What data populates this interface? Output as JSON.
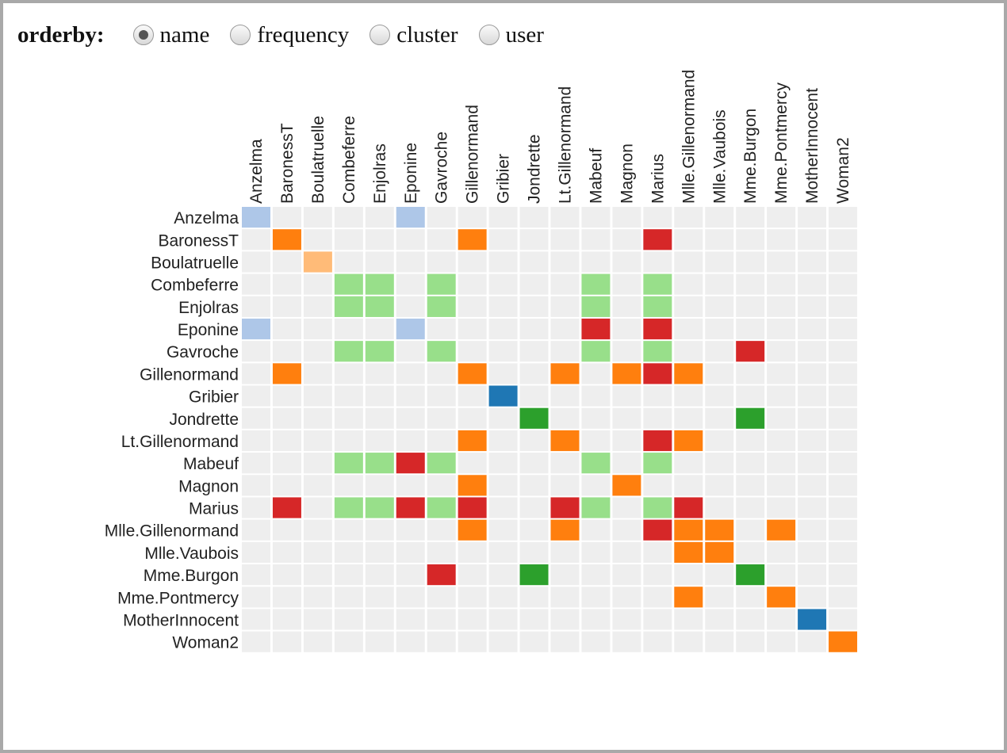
{
  "controls": {
    "orderby_label": "orderby:",
    "options": [
      {
        "label": "name",
        "checked": true
      },
      {
        "label": "frequency",
        "checked": false
      },
      {
        "label": "cluster",
        "checked": false
      },
      {
        "label": "user",
        "checked": false
      }
    ]
  },
  "colors": {
    "background": "#eeeeee",
    "group_colors": {
      "1": "#aec7e8",
      "2": "#ff7f0e",
      "3": "#ffbb78",
      "4": "#98df8a",
      "5": "#d62728",
      "6": "#1f77b4",
      "7": "#2ca02c"
    }
  },
  "chart_data": {
    "type": "heatmap",
    "title": "",
    "nodes": [
      "Anzelma",
      "BaronessT",
      "Boulatruelle",
      "Combeferre",
      "Enjolras",
      "Eponine",
      "Gavroche",
      "Gillenormand",
      "Gribier",
      "Jondrette",
      "Lt.Gillenormand",
      "Mabeuf",
      "Magnon",
      "Marius",
      "Mlle.Gillenormand",
      "Mlle.Vaubois",
      "Mme.Burgon",
      "Mme.Pontmercy",
      "MotherInnocent",
      "Woman2"
    ],
    "cells": [
      {
        "row": "Anzelma",
        "col": "Anzelma",
        "group": 1
      },
      {
        "row": "Anzelma",
        "col": "Eponine",
        "group": 1
      },
      {
        "row": "BaronessT",
        "col": "BaronessT",
        "group": 2
      },
      {
        "row": "BaronessT",
        "col": "Gillenormand",
        "group": 2
      },
      {
        "row": "BaronessT",
        "col": "Marius",
        "group": 5
      },
      {
        "row": "Boulatruelle",
        "col": "Boulatruelle",
        "group": 3
      },
      {
        "row": "Combeferre",
        "col": "Combeferre",
        "group": 4
      },
      {
        "row": "Combeferre",
        "col": "Enjolras",
        "group": 4
      },
      {
        "row": "Combeferre",
        "col": "Gavroche",
        "group": 4
      },
      {
        "row": "Combeferre",
        "col": "Mabeuf",
        "group": 4
      },
      {
        "row": "Combeferre",
        "col": "Marius",
        "group": 4
      },
      {
        "row": "Enjolras",
        "col": "Combeferre",
        "group": 4
      },
      {
        "row": "Enjolras",
        "col": "Enjolras",
        "group": 4
      },
      {
        "row": "Enjolras",
        "col": "Gavroche",
        "group": 4
      },
      {
        "row": "Enjolras",
        "col": "Mabeuf",
        "group": 4
      },
      {
        "row": "Enjolras",
        "col": "Marius",
        "group": 4
      },
      {
        "row": "Eponine",
        "col": "Anzelma",
        "group": 1
      },
      {
        "row": "Eponine",
        "col": "Eponine",
        "group": 1
      },
      {
        "row": "Eponine",
        "col": "Mabeuf",
        "group": 5
      },
      {
        "row": "Eponine",
        "col": "Marius",
        "group": 5
      },
      {
        "row": "Gavroche",
        "col": "Combeferre",
        "group": 4
      },
      {
        "row": "Gavroche",
        "col": "Enjolras",
        "group": 4
      },
      {
        "row": "Gavroche",
        "col": "Gavroche",
        "group": 4
      },
      {
        "row": "Gavroche",
        "col": "Mabeuf",
        "group": 4
      },
      {
        "row": "Gavroche",
        "col": "Marius",
        "group": 4
      },
      {
        "row": "Gavroche",
        "col": "Mme.Burgon",
        "group": 5
      },
      {
        "row": "Gillenormand",
        "col": "BaronessT",
        "group": 2
      },
      {
        "row": "Gillenormand",
        "col": "Gillenormand",
        "group": 2
      },
      {
        "row": "Gillenormand",
        "col": "Lt.Gillenormand",
        "group": 2
      },
      {
        "row": "Gillenormand",
        "col": "Magnon",
        "group": 2
      },
      {
        "row": "Gillenormand",
        "col": "Marius",
        "group": 5
      },
      {
        "row": "Gillenormand",
        "col": "Mlle.Gillenormand",
        "group": 2
      },
      {
        "row": "Gribier",
        "col": "Gribier",
        "group": 6
      },
      {
        "row": "Jondrette",
        "col": "Jondrette",
        "group": 7
      },
      {
        "row": "Jondrette",
        "col": "Mme.Burgon",
        "group": 7
      },
      {
        "row": "Lt.Gillenormand",
        "col": "Gillenormand",
        "group": 2
      },
      {
        "row": "Lt.Gillenormand",
        "col": "Lt.Gillenormand",
        "group": 2
      },
      {
        "row": "Lt.Gillenormand",
        "col": "Marius",
        "group": 5
      },
      {
        "row": "Lt.Gillenormand",
        "col": "Mlle.Gillenormand",
        "group": 2
      },
      {
        "row": "Mabeuf",
        "col": "Combeferre",
        "group": 4
      },
      {
        "row": "Mabeuf",
        "col": "Enjolras",
        "group": 4
      },
      {
        "row": "Mabeuf",
        "col": "Eponine",
        "group": 5
      },
      {
        "row": "Mabeuf",
        "col": "Gavroche",
        "group": 4
      },
      {
        "row": "Mabeuf",
        "col": "Mabeuf",
        "group": 4
      },
      {
        "row": "Mabeuf",
        "col": "Marius",
        "group": 4
      },
      {
        "row": "Magnon",
        "col": "Gillenormand",
        "group": 2
      },
      {
        "row": "Magnon",
        "col": "Magnon",
        "group": 2
      },
      {
        "row": "Marius",
        "col": "BaronessT",
        "group": 5
      },
      {
        "row": "Marius",
        "col": "Combeferre",
        "group": 4
      },
      {
        "row": "Marius",
        "col": "Enjolras",
        "group": 4
      },
      {
        "row": "Marius",
        "col": "Eponine",
        "group": 5
      },
      {
        "row": "Marius",
        "col": "Gavroche",
        "group": 4
      },
      {
        "row": "Marius",
        "col": "Gillenormand",
        "group": 5
      },
      {
        "row": "Marius",
        "col": "Lt.Gillenormand",
        "group": 5
      },
      {
        "row": "Marius",
        "col": "Mabeuf",
        "group": 4
      },
      {
        "row": "Marius",
        "col": "Marius",
        "group": 4
      },
      {
        "row": "Marius",
        "col": "Mlle.Gillenormand",
        "group": 5
      },
      {
        "row": "Mlle.Gillenormand",
        "col": "Gillenormand",
        "group": 2
      },
      {
        "row": "Mlle.Gillenormand",
        "col": "Lt.Gillenormand",
        "group": 2
      },
      {
        "row": "Mlle.Gillenormand",
        "col": "Marius",
        "group": 5
      },
      {
        "row": "Mlle.Gillenormand",
        "col": "Mlle.Gillenormand",
        "group": 2
      },
      {
        "row": "Mlle.Gillenormand",
        "col": "Mlle.Vaubois",
        "group": 2
      },
      {
        "row": "Mlle.Gillenormand",
        "col": "Mme.Pontmercy",
        "group": 2
      },
      {
        "row": "Mlle.Vaubois",
        "col": "Mlle.Gillenormand",
        "group": 2
      },
      {
        "row": "Mlle.Vaubois",
        "col": "Mlle.Vaubois",
        "group": 2
      },
      {
        "row": "Mme.Burgon",
        "col": "Gavroche",
        "group": 5
      },
      {
        "row": "Mme.Burgon",
        "col": "Jondrette",
        "group": 7
      },
      {
        "row": "Mme.Burgon",
        "col": "Mme.Burgon",
        "group": 7
      },
      {
        "row": "Mme.Pontmercy",
        "col": "Mlle.Gillenormand",
        "group": 2
      },
      {
        "row": "Mme.Pontmercy",
        "col": "Mme.Pontmercy",
        "group": 2
      },
      {
        "row": "MotherInnocent",
        "col": "MotherInnocent",
        "group": 6
      },
      {
        "row": "Woman2",
        "col": "Woman2",
        "group": 2
      }
    ]
  }
}
